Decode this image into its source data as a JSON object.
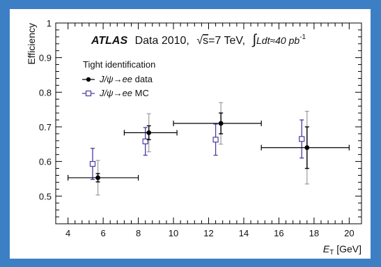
{
  "chart_data": {
    "type": "scatter",
    "experiment": "ATLAS",
    "header_text": "Data 2010,",
    "energy_sqrt_s": "s",
    "energy_text": "=7 TeV,",
    "lumi_integral": "∫",
    "lumi_text": "Ldt≈40 pb",
    "lumi_exponent": "-1",
    "legend_title": "Tight identification",
    "legend_placement": "top-left",
    "xlabel_main": "E",
    "xlabel_sub": "T",
    "xlabel_unit": "[GeV]",
    "ylabel": "Efficiency",
    "xlim": [
      3.3,
      20.7
    ],
    "ylim": [
      0.42,
      1.0
    ],
    "xticks": [
      4,
      6,
      8,
      10,
      12,
      14,
      16,
      18,
      20
    ],
    "yticks": [
      0.5,
      0.6,
      0.7,
      0.8,
      0.9,
      1.0
    ],
    "ytick_labels": [
      "0.5",
      "0.6",
      "0.7",
      "0.8",
      "0.9",
      "1"
    ],
    "series": [
      {
        "name_italic": "J/ψ→ee",
        "name_rest": " data",
        "marker": "filled-circle",
        "color": "#000000",
        "points": [
          {
            "x": 5.7,
            "xerr_low": 1.7,
            "xerr_high": 2.3,
            "y": 0.553,
            "yerr_stat": 0.012,
            "yerr_tot": 0.05
          },
          {
            "x": 8.6,
            "xerr_low": 1.4,
            "xerr_high": 1.6,
            "y": 0.683,
            "yerr_stat": 0.02,
            "yerr_tot": 0.055
          },
          {
            "x": 12.7,
            "xerr_low": 2.7,
            "xerr_high": 2.3,
            "y": 0.71,
            "yerr_stat": 0.03,
            "yerr_tot": 0.06
          },
          {
            "x": 17.6,
            "xerr_low": 2.6,
            "xerr_high": 2.4,
            "y": 0.64,
            "yerr_stat": 0.06,
            "yerr_tot": 0.105
          }
        ]
      },
      {
        "name_italic": "J/ψ→ee",
        "name_rest": " MC",
        "marker": "open-square",
        "color": "#4a3aa0",
        "points": [
          {
            "x": 5.4,
            "y": 0.593,
            "yerr": 0.045
          },
          {
            "x": 8.4,
            "y": 0.658,
            "yerr": 0.04
          },
          {
            "x": 12.4,
            "y": 0.663,
            "yerr": 0.045
          },
          {
            "x": 17.3,
            "y": 0.665,
            "yerr": 0.055
          }
        ]
      }
    ]
  }
}
